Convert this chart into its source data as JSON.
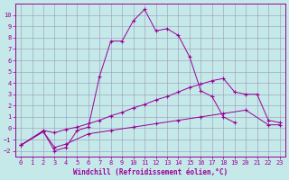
{
  "xlabel": "Windchill (Refroidissement éolien,°C)",
  "bg_color": "#c5e8e8",
  "line_color": "#990099",
  "grid_color": "#9999bb",
  "ylim": [
    -2.5,
    11.0
  ],
  "xlim": [
    -0.5,
    23.5
  ],
  "yticks": [
    -2,
    -1,
    0,
    1,
    2,
    3,
    4,
    5,
    6,
    7,
    8,
    9,
    10
  ],
  "xticks": [
    0,
    1,
    2,
    3,
    4,
    5,
    6,
    7,
    8,
    9,
    10,
    11,
    12,
    13,
    14,
    15,
    16,
    17,
    18,
    19,
    20,
    21,
    22,
    23
  ],
  "line1_x": [
    0,
    2,
    3,
    4,
    5,
    6,
    7,
    8,
    9,
    10,
    11,
    12,
    13,
    14,
    15,
    16,
    17,
    18,
    19,
    20,
    21,
    22,
    23
  ],
  "line1_y": [
    -1.5,
    -0.3,
    -2.0,
    -1.7,
    -0.2,
    0.1,
    4.6,
    7.7,
    7.7,
    9.5,
    10.5,
    8.6,
    8.8,
    8.2,
    6.3,
    3.3,
    2.8,
    1.0,
    0.5,
    null,
    null,
    null,
    null
  ],
  "line2_x": [
    0,
    2,
    3,
    4,
    5,
    6,
    7,
    8,
    9,
    10,
    11,
    12,
    13,
    14,
    15,
    16,
    17,
    18,
    19,
    20,
    21,
    22,
    23
  ],
  "line2_y": [
    -1.5,
    -0.2,
    -0.4,
    -0.1,
    0.1,
    0.4,
    0.7,
    1.1,
    1.4,
    1.8,
    2.1,
    2.5,
    2.8,
    3.2,
    3.6,
    3.9,
    4.2,
    4.4,
    3.2,
    3.0,
    3.0,
    0.7,
    0.5
  ],
  "line3_x": [
    0,
    2,
    3,
    4,
    6,
    8,
    10,
    12,
    14,
    16,
    18,
    20,
    22,
    23
  ],
  "line3_y": [
    -1.5,
    -0.3,
    -1.7,
    -1.4,
    -0.5,
    -0.2,
    0.1,
    0.4,
    0.7,
    1.0,
    1.3,
    1.6,
    0.3,
    0.3
  ]
}
